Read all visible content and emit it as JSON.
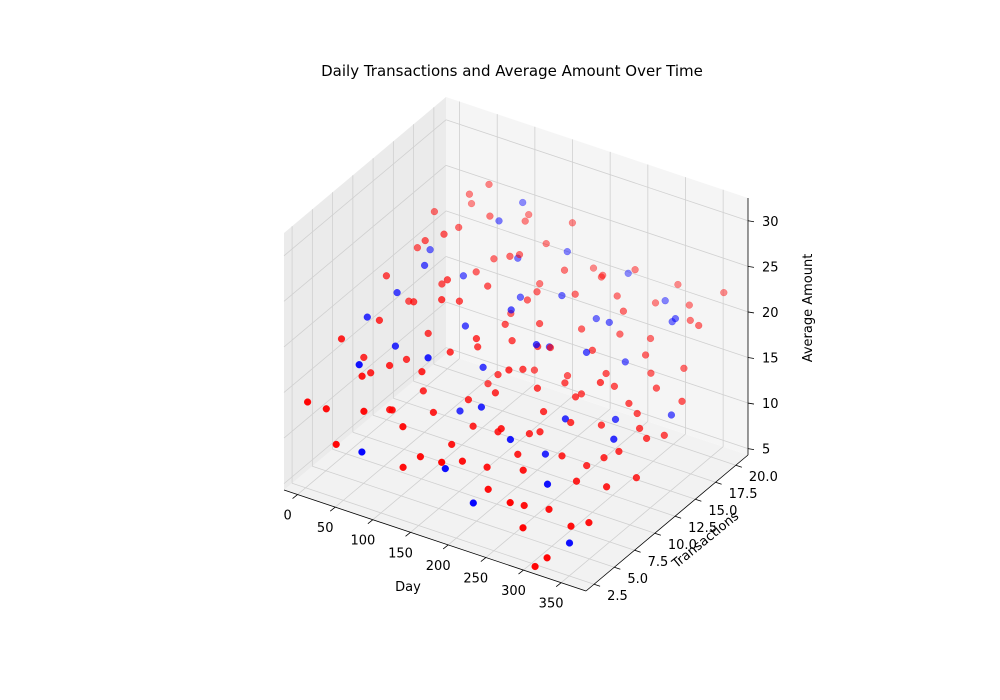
{
  "chart_data": {
    "type": "scatter",
    "projection": "3d",
    "title": "Daily Transactions and Average Amount Over Time",
    "xlabel": "Day",
    "ylabel": "Transactions",
    "zlabel": "Average Amount",
    "xlim": [
      -18,
      383
    ],
    "ylim": [
      1.5,
      21.5
    ],
    "zlim": [
      4.3,
      32.5
    ],
    "xticks": [
      "0",
      "50",
      "100",
      "150",
      "200",
      "250",
      "300",
      "350"
    ],
    "yticks": [
      "2.5",
      "5.0",
      "7.5",
      "10.0",
      "12.5",
      "15.0",
      "17.5",
      "20.0"
    ],
    "zticks": [
      "5",
      "10",
      "15",
      "20",
      "25",
      "30"
    ],
    "grid": true,
    "colors": {
      "red": "#ff0000",
      "blue": "#0000ff",
      "pane": "#f2f2f2",
      "grid": "#d0d0d0"
    },
    "series": [
      {
        "color": "blue",
        "points": [
          [
            12,
            9,
            18.5
          ],
          [
            30,
            11,
            20.2
          ],
          [
            45,
            13,
            22.1
          ],
          [
            60,
            8,
            17.4
          ],
          [
            75,
            15,
            20.3
          ],
          [
            90,
            18,
            24.5
          ],
          [
            110,
            12,
            18.0
          ],
          [
            125,
            6,
            19.4
          ],
          [
            140,
            16,
            19.0
          ],
          [
            155,
            10,
            16.2
          ],
          [
            170,
            19,
            22.6
          ],
          [
            185,
            7,
            14.9
          ],
          [
            200,
            14,
            16.7
          ],
          [
            215,
            11,
            19.6
          ],
          [
            230,
            17,
            18.4
          ],
          [
            245,
            5,
            14.5
          ],
          [
            260,
            13,
            18.5
          ],
          [
            275,
            9,
            14.6
          ],
          [
            290,
            15,
            16.8
          ],
          [
            305,
            4,
            12.0
          ],
          [
            320,
            11,
            14.3
          ],
          [
            335,
            17,
            21.3
          ],
          [
            350,
            8,
            15.2
          ],
          [
            362,
            14,
            13.7
          ],
          [
            20,
            16,
            20.9
          ],
          [
            55,
            4,
            18.2
          ],
          [
            100,
            20,
            25.3
          ],
          [
            180,
            3,
            11.0
          ],
          [
            240,
            20,
            21.4
          ],
          [
            300,
            19,
            20.8
          ],
          [
            345,
            3,
            7.4
          ],
          [
            135,
            9,
            11.6
          ],
          [
            195,
            16,
            20.7
          ],
          [
            270,
            7,
            12.1
          ],
          [
            320,
            18,
            19.8
          ],
          [
            160,
            13,
            20.4
          ],
          [
            80,
            2,
            10.8
          ],
          [
            228,
            2,
            9.3
          ],
          [
            115,
            18,
            21.1
          ],
          [
            258,
            16,
            19.5
          ]
        ]
      },
      {
        "color": "red",
        "points": [
          [
            5,
            12,
            20.6
          ],
          [
            10,
            6,
            18.3
          ],
          [
            15,
            17,
            24.2
          ],
          [
            22,
            3,
            13.2
          ],
          [
            28,
            9,
            18.6
          ],
          [
            35,
            14,
            23.8
          ],
          [
            40,
            19,
            25.3
          ],
          [
            48,
            5,
            16.0
          ],
          [
            52,
            11,
            19.8
          ],
          [
            58,
            16,
            24.4
          ],
          [
            63,
            7,
            16.1
          ],
          [
            68,
            13,
            20.7
          ],
          [
            72,
            3,
            14.3
          ],
          [
            78,
            18,
            24.7
          ],
          [
            82,
            10,
            17.9
          ],
          [
            88,
            5,
            13.4
          ],
          [
            92,
            15,
            21.2
          ],
          [
            97,
            8,
            13.5
          ],
          [
            102,
            12,
            20.5
          ],
          [
            108,
            20,
            24.2
          ],
          [
            113,
            4,
            13.0
          ],
          [
            118,
            14,
            21.1
          ],
          [
            122,
            9,
            17.7
          ],
          [
            128,
            17,
            22.6
          ],
          [
            132,
            6,
            13.6
          ],
          [
            137,
            11,
            17.2
          ],
          [
            142,
            19,
            22.7
          ],
          [
            147,
            3,
            11.4
          ],
          [
            152,
            13,
            18.6
          ],
          [
            157,
            8,
            14.2
          ],
          [
            162,
            16,
            20.2
          ],
          [
            167,
            5,
            11.8
          ],
          [
            172,
            12,
            18.1
          ],
          [
            177,
            18,
            21.5
          ],
          [
            182,
            9,
            14.9
          ],
          [
            187,
            14,
            18.9
          ],
          [
            192,
            4,
            11.4
          ],
          [
            197,
            11,
            16.4
          ],
          [
            202,
            17,
            20.3
          ],
          [
            207,
            7,
            12.8
          ],
          [
            212,
            13,
            17.7
          ],
          [
            217,
            19,
            21.3
          ],
          [
            222,
            6,
            14.3
          ],
          [
            227,
            10,
            15.9
          ],
          [
            232,
            15,
            18.8
          ],
          [
            237,
            3,
            10.3
          ],
          [
            242,
            12,
            15.4
          ],
          [
            247,
            18,
            20.6
          ],
          [
            252,
            8,
            13.3
          ],
          [
            257,
            14,
            17.9
          ],
          [
            262,
            5,
            11.6
          ],
          [
            267,
            11,
            15.3
          ],
          [
            272,
            16,
            18.6
          ],
          [
            277,
            2,
            10.7
          ],
          [
            282,
            9,
            14.4
          ],
          [
            287,
            19,
            20.2
          ],
          [
            292,
            7,
            12.5
          ],
          [
            297,
            13,
            15.8
          ],
          [
            302,
            17,
            18.2
          ],
          [
            307,
            4,
            9.3
          ],
          [
            312,
            10,
            14.2
          ],
          [
            317,
            15,
            18.3
          ],
          [
            322,
            6,
            11.3
          ],
          [
            327,
            12,
            15.5
          ],
          [
            332,
            19,
            21.2
          ],
          [
            337,
            8,
            12.8
          ],
          [
            342,
            14,
            16.1
          ],
          [
            347,
            3,
            9.3
          ],
          [
            352,
            11,
            14.2
          ],
          [
            357,
            16,
            17.2
          ],
          [
            362,
            6,
            11.8
          ],
          [
            367,
            20,
            22.8
          ],
          [
            372,
            10,
            14.4
          ],
          [
            376,
            14,
            15.6
          ],
          [
            18,
            8,
            15.0
          ],
          [
            32,
            20,
            23.3
          ],
          [
            46,
            2,
            10.7
          ],
          [
            66,
            19,
            27.1
          ],
          [
            86,
            12,
            22.4
          ],
          [
            106,
            7,
            16.6
          ],
          [
            126,
            16,
            23.1
          ],
          [
            146,
            10,
            19.1
          ],
          [
            166,
            20,
            24.9
          ],
          [
            186,
            2,
            12.6
          ],
          [
            206,
            12,
            18.4
          ],
          [
            226,
            18,
            22.1
          ],
          [
            246,
            9,
            14.6
          ],
          [
            266,
            17,
            20.2
          ],
          [
            286,
            13,
            16.9
          ],
          [
            306,
            20,
            22.0
          ],
          [
            326,
            2,
            6.0
          ],
          [
            346,
            9,
            13.0
          ],
          [
            366,
            17,
            21.4
          ],
          [
            100,
            10,
            22.1
          ],
          [
            200,
            9,
            17.9
          ],
          [
            300,
            11,
            17.8
          ],
          [
            60,
            14,
            25.2
          ],
          [
            160,
            15,
            20.0
          ],
          [
            260,
            19,
            23.1
          ],
          [
            360,
            4,
            9.3
          ],
          [
            24,
            13,
            17.6
          ],
          [
            124,
            3,
            9.6
          ],
          [
            224,
            14,
            14.2
          ],
          [
            324,
            15,
            16.5
          ],
          [
            74,
            6,
            12.3
          ],
          [
            174,
            7,
            12.5
          ],
          [
            274,
            4,
            8.8
          ],
          [
            374,
            12,
            13.3
          ],
          [
            144,
            18,
            19.1
          ],
          [
            244,
            6,
            12.1
          ],
          [
            344,
            18,
            20.6
          ],
          [
            94,
            17,
            21.2
          ],
          [
            194,
            20,
            20.7
          ],
          [
            294,
            2,
            8.4
          ],
          [
            38,
            7,
            14.6
          ],
          [
            138,
            15,
            17.9
          ],
          [
            238,
            8,
            12.7
          ],
          [
            338,
            12,
            14.7
          ],
          [
            214,
            5,
            10.6
          ],
          [
            114,
            19,
            24.4
          ],
          [
            314,
            8,
            11.3
          ],
          [
            264,
            12,
            14.8
          ],
          [
            164,
            11,
            14.9
          ],
          [
            64,
            9,
            15.3
          ],
          [
            14,
            15,
            21.7
          ],
          [
            310,
            2,
            4.6
          ],
          [
            8,
            2,
            14.3
          ],
          [
            180,
            14,
            13.6
          ],
          [
            140,
            12,
            12.5
          ],
          [
            380,
            8,
            11.8
          ]
        ]
      }
    ]
  }
}
